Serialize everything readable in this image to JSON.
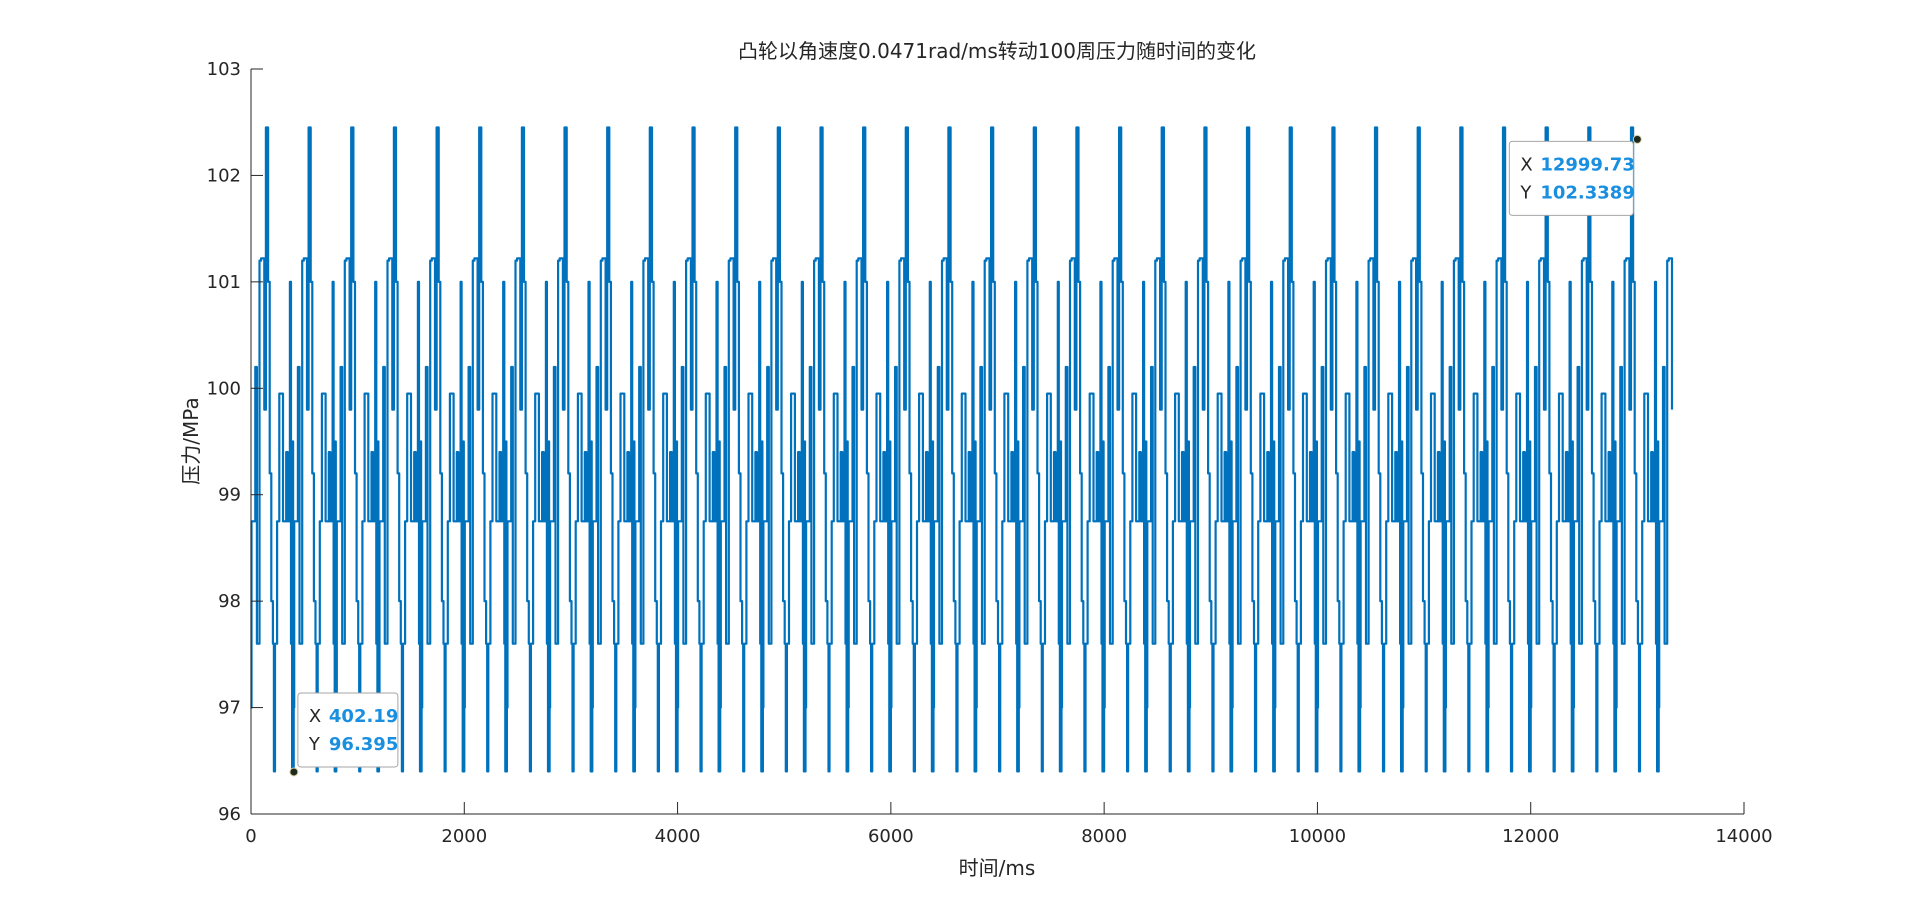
{
  "chart_data": {
    "type": "line",
    "title": "凸轮以角速度0.0471rad/ms转动100周压力随时间的变化",
    "xlabel": "时间/ms",
    "ylabel": "压力/MPa",
    "xlim": [
      0,
      14000
    ],
    "ylim": [
      96,
      103
    ],
    "xticks": [
      "0",
      "2000",
      "4000",
      "6000",
      "8000",
      "10000",
      "12000",
      "14000"
    ],
    "yticks": [
      "96",
      "97",
      "98",
      "99",
      "100",
      "101",
      "102",
      "103"
    ],
    "grid": false,
    "legend": "none",
    "series": [
      {
        "color": "#0072bd",
        "period_ms": 400,
        "x_start": 0,
        "x_end": 13330,
        "levels": [
          96.4,
          97.6,
          98.75,
          99.95,
          101.22,
          102.45
        ],
        "cycle_profile": {
          "x_offset_ms": [
            0,
            5,
            25,
            40,
            55,
            70,
            80,
            95,
            110,
            125,
            140,
            160,
            175,
            190,
            205,
            215,
            225,
            235,
            245,
            255,
            265,
            275,
            285,
            300,
            310,
            320,
            330,
            345,
            355,
            365,
            375,
            380,
            385,
            390,
            395,
            400
          ],
          "y": [
            97.0,
            98.75,
            98.75,
            100.2,
            97.6,
            97.6,
            101.2,
            101.22,
            101.22,
            99.8,
            102.45,
            101.0,
            99.2,
            98.0,
            97.6,
            96.4,
            97.6,
            97.6,
            98.75,
            98.75,
            99.95,
            99.95,
            99.95,
            98.75,
            98.75,
            98.75,
            99.4,
            98.75,
            98.75,
            101.0,
            97.6,
            98.75,
            96.4,
            99.5,
            96.4,
            97.0
          ]
        }
      }
    ],
    "annotations": [
      {
        "x_label": "X",
        "x_value": "402.19",
        "y_label": "Y",
        "y_value": "96.395",
        "x": 402.19,
        "y": 96.395
      },
      {
        "x_label": "X",
        "x_value": "12999.73",
        "y_label": "Y",
        "y_value": "102.3389",
        "x": 12999.73,
        "y": 102.3389
      }
    ]
  }
}
